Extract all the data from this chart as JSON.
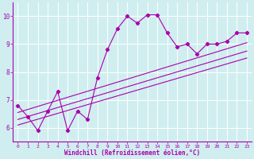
{
  "title": "",
  "xlabel": "Windchill (Refroidissement éolien,°C)",
  "ylabel": "",
  "x_data": [
    0,
    1,
    2,
    3,
    4,
    5,
    6,
    7,
    8,
    9,
    10,
    11,
    12,
    13,
    14,
    15,
    16,
    17,
    18,
    19,
    20,
    21,
    22,
    23
  ],
  "y_data": [
    6.8,
    6.4,
    5.9,
    6.6,
    7.3,
    5.9,
    6.6,
    6.3,
    7.8,
    8.8,
    9.55,
    10.0,
    9.75,
    10.05,
    10.05,
    9.4,
    8.9,
    9.0,
    8.65,
    9.0,
    9.0,
    9.1,
    9.4,
    9.4
  ],
  "line_color": "#aa00aa",
  "bg_color": "#d0eef0",
  "grid_color": "#ffffff",
  "ylim": [
    5.5,
    10.5
  ],
  "xlim": [
    -0.5,
    23.5
  ],
  "yticks": [
    6,
    7,
    8,
    9,
    10
  ],
  "xticks": [
    0,
    1,
    2,
    3,
    4,
    5,
    6,
    7,
    8,
    9,
    10,
    11,
    12,
    13,
    14,
    15,
    16,
    17,
    18,
    19,
    20,
    21,
    22,
    23
  ],
  "reg1_y_start": 6.3,
  "reg1_y_end": 8.75,
  "reg2_y_start": 6.55,
  "reg2_y_end": 9.05,
  "reg3_y_start": 6.1,
  "reg3_y_end": 8.5
}
